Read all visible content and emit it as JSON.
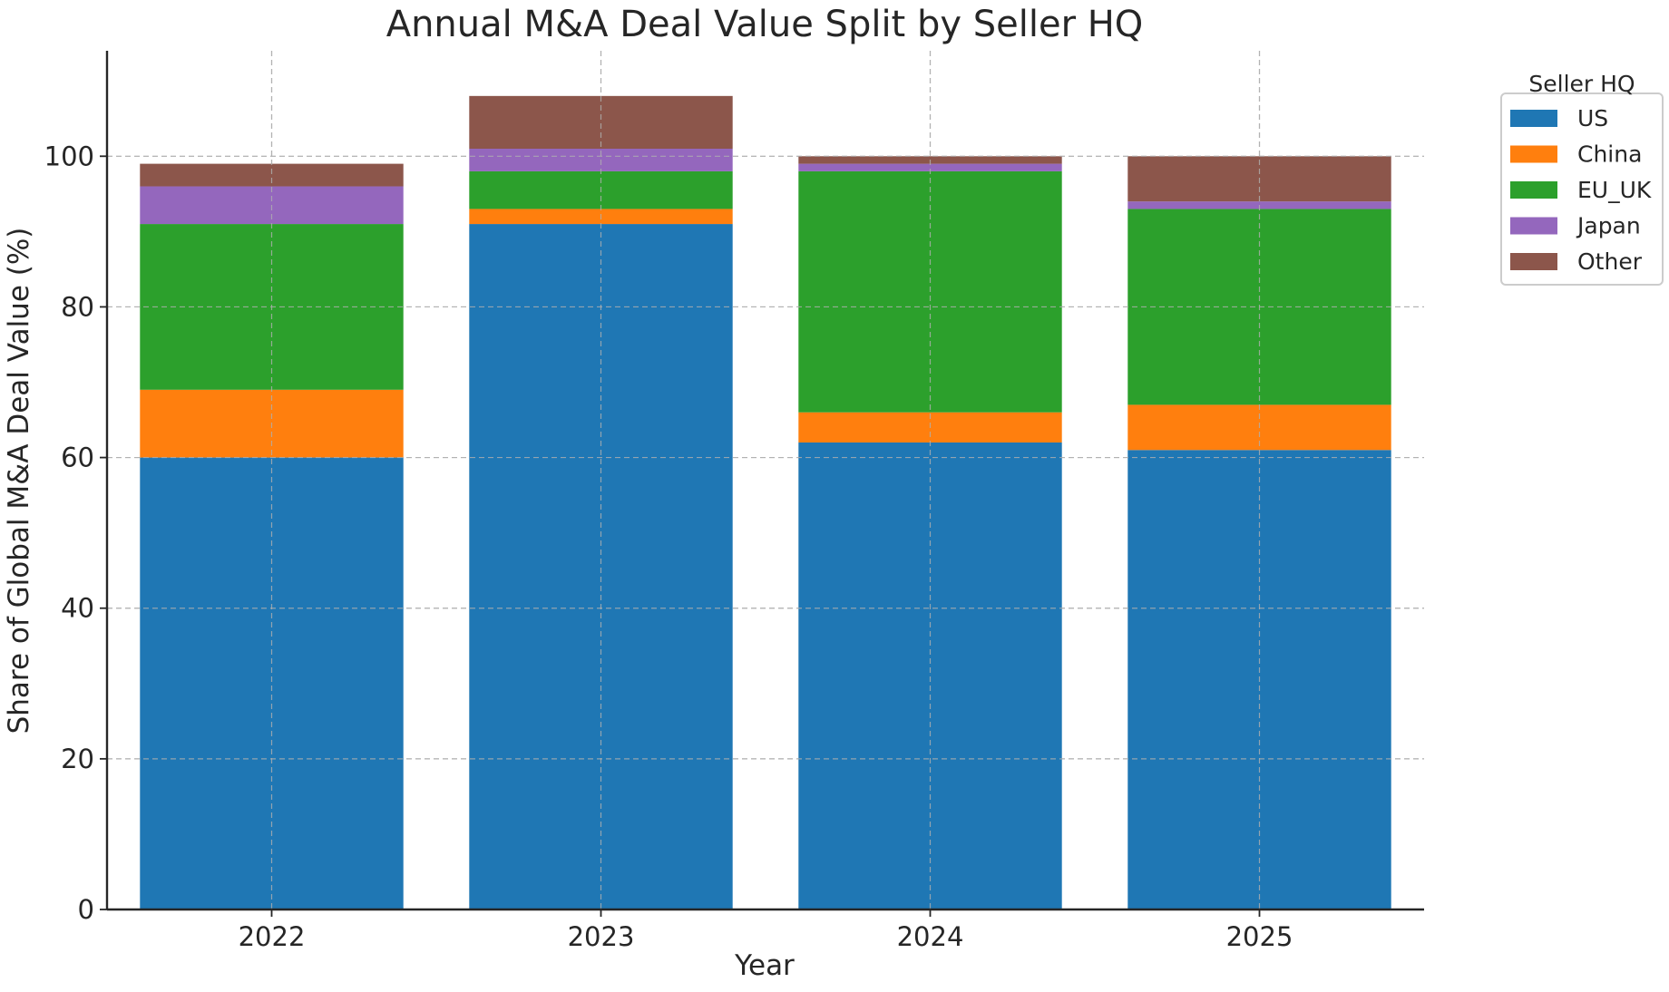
{
  "chart_data": {
    "type": "bar",
    "stacked": true,
    "title": "Annual M&A Deal Value Split by Seller HQ",
    "xlabel": "Year",
    "ylabel": "Share of Global M&A Deal Value (%)",
    "categories": [
      "2022",
      "2023",
      "2024",
      "2025"
    ],
    "ylim": [
      0,
      114
    ],
    "yticks": [
      0,
      20,
      40,
      60,
      80,
      100
    ],
    "grid": true,
    "legend": {
      "title": "Seller HQ",
      "placement": "outside-top-right"
    },
    "series": [
      {
        "name": "US",
        "color": "#1f77b4",
        "values": [
          60,
          91,
          62,
          61
        ]
      },
      {
        "name": "China",
        "color": "#ff7f0e",
        "values": [
          9,
          2,
          4,
          6
        ]
      },
      {
        "name": "EU_UK",
        "color": "#2ca02c",
        "values": [
          22,
          5,
          32,
          26
        ]
      },
      {
        "name": "Japan",
        "color": "#9467bd",
        "values": [
          5,
          3,
          1,
          1
        ]
      },
      {
        "name": "Other",
        "color": "#8c564b",
        "values": [
          3,
          7,
          1,
          6
        ]
      }
    ]
  }
}
